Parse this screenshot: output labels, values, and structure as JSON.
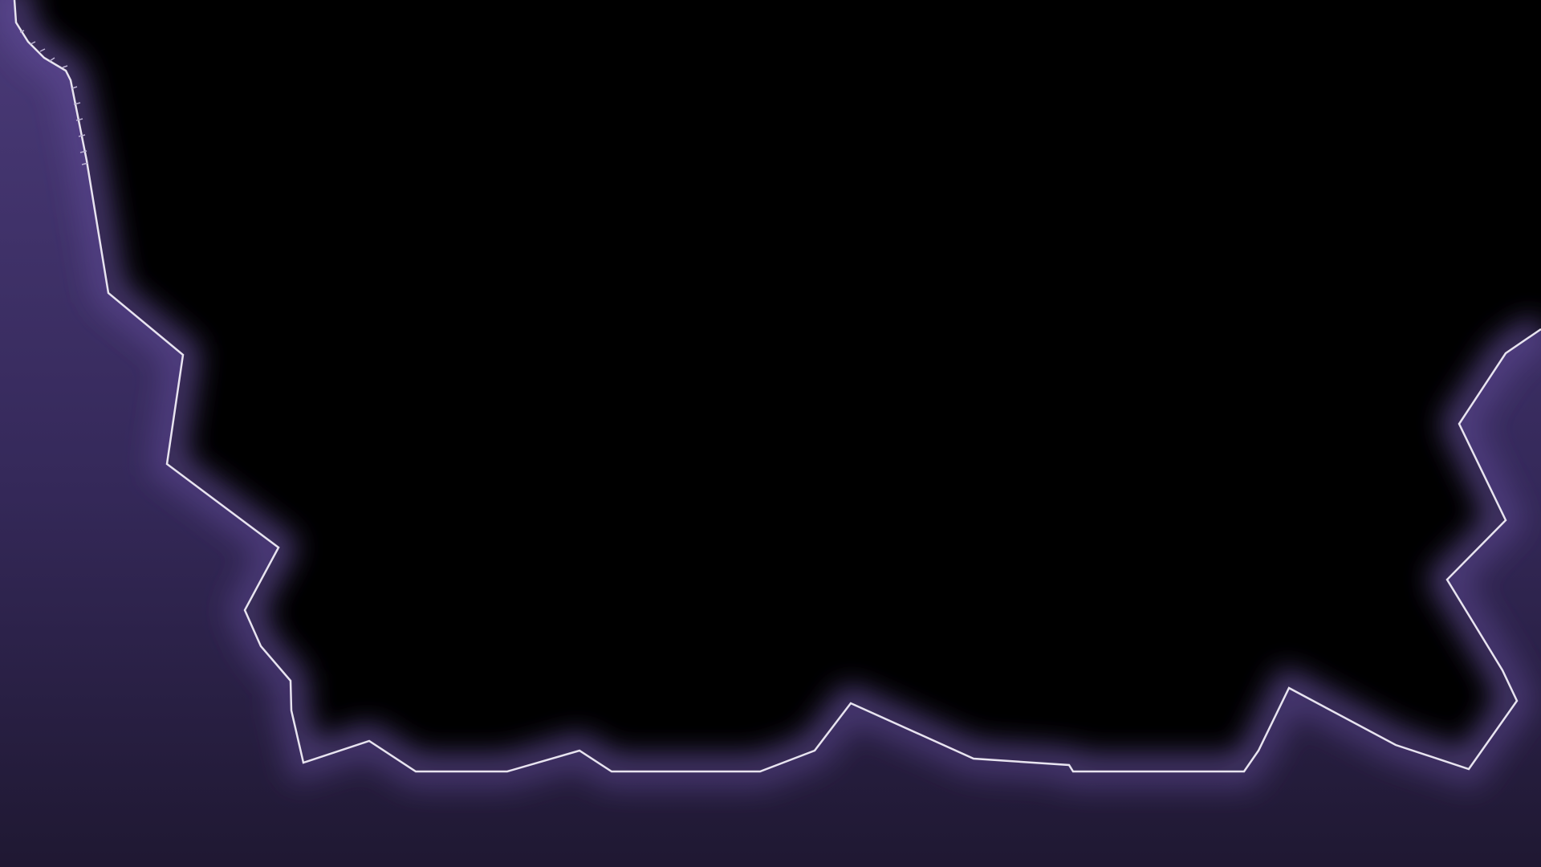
{
  "scene": {
    "background_color": "#000000",
    "terrain_fill_light": "#4a3a78",
    "terrain_fill_mid": "#35295a",
    "terrain_fill_dark": "#1f1832",
    "terrain_edge_color": "#e8e4f0",
    "glow_color": "#8a6fd0"
  }
}
